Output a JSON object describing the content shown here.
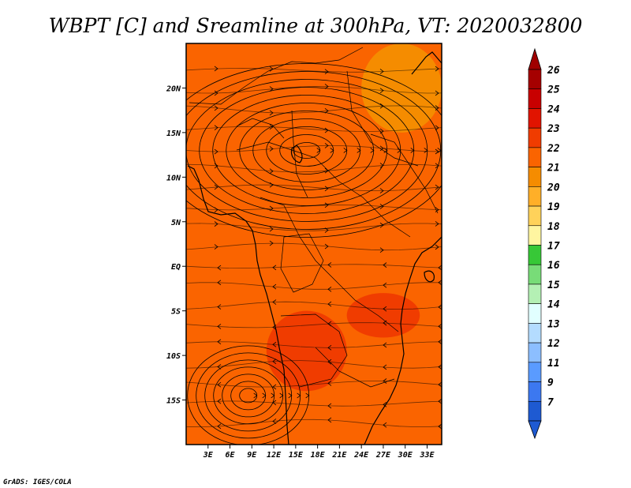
{
  "chart_data": {
    "type": "heatmap",
    "title": "WBPT [C] and Sreamline at 300hPa, VT: 2020032800",
    "credit": "GrADS: IGES/COLA",
    "x_axis": {
      "range": [
        0,
        35
      ],
      "ticks": [
        3,
        6,
        9,
        12,
        15,
        18,
        21,
        24,
        27,
        30,
        33
      ],
      "tick_labels": [
        "3E",
        "6E",
        "9E",
        "12E",
        "15E",
        "18E",
        "21E",
        "24E",
        "27E",
        "30E",
        "33E"
      ]
    },
    "y_axis": {
      "range": [
        -20,
        25
      ],
      "ticks": [
        20,
        15,
        10,
        5,
        0,
        -5,
        -10,
        -15
      ],
      "tick_labels": [
        "20N",
        "15N",
        "10N",
        "5N",
        "EQ",
        "5S",
        "10S",
        "15S"
      ]
    },
    "colorbar": {
      "labels": [
        "26",
        "25",
        "24",
        "23",
        "22",
        "21",
        "20",
        "19",
        "18",
        "17",
        "16",
        "15",
        "14",
        "13",
        "12",
        "11",
        "9",
        "7"
      ],
      "colors": [
        "#a50000",
        "#c80000",
        "#e11400",
        "#f03c00",
        "#fa6400",
        "#f58c00",
        "#ffaf28",
        "#ffd25a",
        "#fff5a0",
        "#37c837",
        "#78dc78",
        "#b4f0b4",
        "#e1ffff",
        "#b4dcff",
        "#8cbeff",
        "#5a9bff",
        "#3c78f0",
        "#1e5ad2"
      ],
      "extend": "both"
    },
    "field_regions": [
      {
        "level": "22-23",
        "color": "#fa6400",
        "note": "dominant background"
      },
      {
        "level": "21-22",
        "color": "#f58c00",
        "lon": [
          24,
          35
        ],
        "lat": [
          15,
          25
        ]
      },
      {
        "level": "23-24",
        "color": "#f03c00",
        "lon": [
          11,
          22
        ],
        "lat": [
          -14,
          -5
        ]
      },
      {
        "level": "23-24",
        "color": "#f03c00",
        "lon": [
          22,
          32
        ],
        "lat": [
          -8,
          -3
        ]
      }
    ],
    "streamline_features": [
      {
        "type": "anticyclone",
        "center_lon": 16.5,
        "center_lat": 13
      },
      {
        "type": "anticyclone",
        "center_lon": 8.5,
        "center_lat": -14.5
      }
    ],
    "grid": false,
    "legend": "right"
  }
}
